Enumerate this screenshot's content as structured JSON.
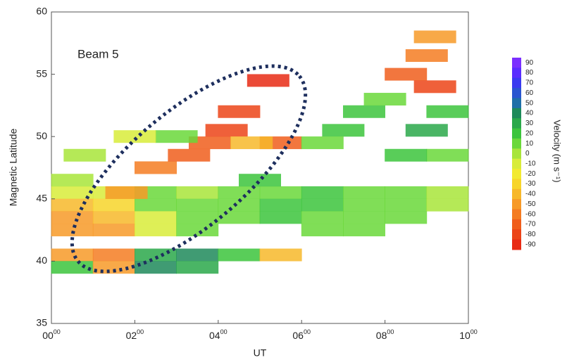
{
  "chart_data": {
    "type": "heatmap",
    "annotation": "Beam 5",
    "xlabel": "UT",
    "ylabel": "Magnetic Latitude",
    "xlim": [
      0,
      10
    ],
    "ylim": [
      35,
      60
    ],
    "xticks": [
      {
        "value": 0,
        "label": "00",
        "sup": "00"
      },
      {
        "value": 2,
        "label": "02",
        "sup": "00"
      },
      {
        "value": 4,
        "label": "04",
        "sup": "00"
      },
      {
        "value": 6,
        "label": "06",
        "sup": "00"
      },
      {
        "value": 8,
        "label": "08",
        "sup": "00"
      },
      {
        "value": 10,
        "label": "10",
        "sup": "00"
      }
    ],
    "yticks": [
      35,
      40,
      45,
      50,
      55,
      60
    ],
    "x": [
      0.5,
      1.5,
      2.5,
      3.5,
      4.5,
      5.5,
      6.5,
      7.5,
      8.5,
      9.5,
      0.5,
      1.5,
      2.5,
      3.5,
      4.5,
      5.5,
      6.5,
      7.5,
      8.5,
      9.5,
      0.5,
      1.5,
      2.5,
      3.5,
      4.5,
      5.5,
      6.5,
      7.5,
      8.5,
      0.5,
      1.5,
      2.5,
      3.5,
      6.5,
      7.5,
      0.5,
      1.5,
      2.5,
      3.5,
      4.5,
      5.5,
      0.5,
      1.5,
      2.5,
      3.5,
      1.8,
      2.5,
      3.3,
      3.8,
      4.2,
      4.5,
      5.2,
      5.5,
      4.8,
      7,
      7.5,
      8,
      8.5,
      9,
      9.2,
      9.5,
      9,
      9.5,
      8.5,
      6.5,
      3,
      2,
      0.8,
      0.5,
      5,
      9.2
    ],
    "y": [
      45.5,
      45.5,
      45.5,
      45.5,
      45.5,
      45.5,
      45.5,
      45.5,
      45.5,
      45.5,
      44.5,
      44.5,
      44.5,
      44.5,
      44.5,
      44.5,
      44.5,
      44.5,
      44.5,
      44.5,
      43.5,
      43.5,
      43.5,
      43.5,
      43.5,
      43.5,
      43.5,
      43.5,
      43.5,
      42.5,
      42.5,
      42.5,
      42.5,
      42.5,
      42.5,
      40.5,
      40.5,
      40.5,
      40.5,
      40.5,
      40.5,
      39.5,
      39.5,
      39.5,
      39.5,
      45.5,
      47.5,
      48.5,
      49.5,
      50.5,
      52,
      54.5,
      49.5,
      49.5,
      50.5,
      52,
      53,
      55,
      56.5,
      54,
      52,
      50.5,
      48.5,
      48.5,
      49.5,
      50,
      50,
      48.5,
      46.5,
      46.5,
      58
    ],
    "values": [
      -10,
      -10,
      10,
      0,
      10,
      10,
      20,
      10,
      10,
      0,
      -40,
      -30,
      10,
      10,
      10,
      20,
      20,
      10,
      10,
      0,
      -50,
      -40,
      -10,
      10,
      10,
      20,
      10,
      10,
      10,
      -50,
      -50,
      -10,
      10,
      10,
      10,
      -50,
      -60,
      30,
      40,
      20,
      -40,
      20,
      -50,
      40,
      30,
      -50,
      -60,
      -70,
      -70,
      -80,
      -80,
      -90,
      -70,
      -40,
      20,
      20,
      10,
      -70,
      -60,
      -80,
      20,
      30,
      10,
      20,
      10,
      10,
      -10,
      0,
      0,
      20,
      -50
    ],
    "colorbar": {
      "label": "Velocity (m s⁻¹)",
      "ticks": [
        90,
        80,
        70,
        60,
        50,
        40,
        30,
        20,
        10,
        0,
        -10,
        -20,
        -30,
        -40,
        -50,
        -60,
        -70,
        -80,
        -90
      ],
      "colors": [
        "#7b2fff",
        "#5a2cff",
        "#3a3af0",
        "#2a55d0",
        "#1f6fa8",
        "#1e8a5a",
        "#2aa84a",
        "#3cc43c",
        "#6ad83a",
        "#a8e53a",
        "#d8ec3a",
        "#f2ea30",
        "#f7d52a",
        "#f7b82a",
        "#f79a28",
        "#f47c22",
        "#f05e1c",
        "#ec4418",
        "#e82a14"
      ]
    }
  }
}
